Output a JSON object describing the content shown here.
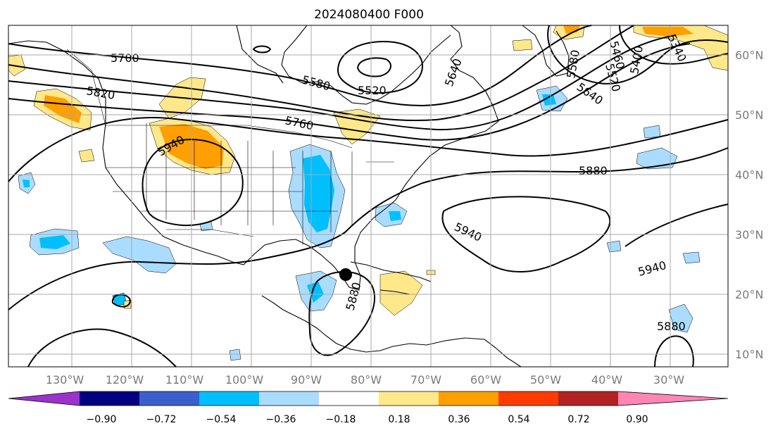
{
  "title": "2024080400 F000",
  "lon_labels": [
    "130°W",
    "120°W",
    "110°W",
    "100°W",
    "90°W",
    "80°W",
    "70°W",
    "60°W",
    "50°W",
    "40°W",
    "30°W"
  ],
  "lat_labels": [
    "60°N",
    "50°N",
    "40°N",
    "30°N",
    "20°N",
    "10°N"
  ],
  "contour_labels": [
    "5700",
    "5820",
    "5940",
    "5580",
    "5520",
    "5640",
    "5760",
    "5880",
    "5940",
    "5940",
    "5880",
    "5880",
    "5580",
    "5460",
    "5520",
    "5400",
    "5340",
    "5640"
  ],
  "colorbar": {
    "ticks": [
      "−0.90",
      "−0.72",
      "−0.54",
      "−0.36",
      "−0.18",
      "0.18",
      "0.36",
      "0.54",
      "0.72",
      "0.90"
    ],
    "colors": {
      "under": "#9933cc",
      "bins": [
        "#000080",
        "#3a5fcd",
        "#00bfff",
        "#aadcff",
        "#ffffff",
        "#ffe88a",
        "#ff9f00",
        "#ff3b00",
        "#b22222"
      ],
      "over": "#ff85b5"
    }
  },
  "marker_color": "#000000"
}
